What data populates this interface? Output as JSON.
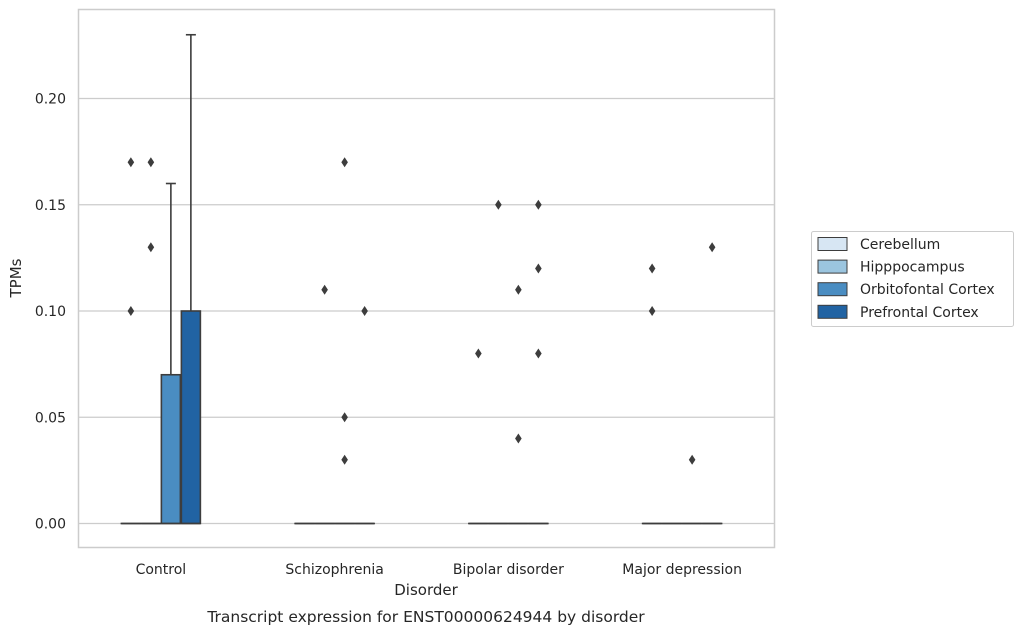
{
  "chart_data": {
    "type": "box",
    "caption": "Transcript expression for ENST00000624944 by disorder",
    "xlabel": "Disorder",
    "ylabel": "TPMs",
    "categories": [
      "Control",
      "Schizophrenia",
      "Bipolar disorder",
      "Major depression"
    ],
    "yticks": [
      "0.00",
      "0.05",
      "0.10",
      "0.15",
      "0.20"
    ],
    "ylim": [
      -0.011,
      0.242
    ],
    "grid": "horizontal",
    "legend_position": "right",
    "series": [
      {
        "name": "Cerebellum",
        "color": "#d7e6f3",
        "boxes": [
          {
            "q1": 0,
            "median": 0,
            "q3": 0,
            "whisker_low": 0,
            "whisker_high": 0,
            "outliers": [
              0.17,
              0.1
            ]
          },
          {
            "q1": 0,
            "median": 0,
            "q3": 0,
            "whisker_low": 0,
            "whisker_high": 0,
            "outliers": []
          },
          {
            "q1": 0,
            "median": 0,
            "q3": 0,
            "whisker_low": 0,
            "whisker_high": 0,
            "outliers": [
              0.08
            ]
          },
          {
            "q1": 0,
            "median": 0,
            "q3": 0,
            "whisker_low": 0,
            "whisker_high": 0,
            "outliers": [
              0.12,
              0.1
            ]
          }
        ]
      },
      {
        "name": "Hipppocampus",
        "color": "#9bc5df",
        "boxes": [
          {
            "q1": 0,
            "median": 0,
            "q3": 0,
            "whisker_low": 0,
            "whisker_high": 0,
            "outliers": [
              0.17,
              0.13
            ]
          },
          {
            "q1": 0,
            "median": 0,
            "q3": 0,
            "whisker_low": 0,
            "whisker_high": 0,
            "outliers": [
              0.11
            ]
          },
          {
            "q1": 0,
            "median": 0,
            "q3": 0,
            "whisker_low": 0,
            "whisker_high": 0,
            "outliers": [
              0.15
            ]
          },
          {
            "q1": 0,
            "median": 0,
            "q3": 0,
            "whisker_low": 0,
            "whisker_high": 0,
            "outliers": []
          }
        ]
      },
      {
        "name": "Orbitofontal Cortex",
        "color": "#4a8dc2",
        "boxes": [
          {
            "q1": 0,
            "median": 0,
            "q3": 0.07,
            "whisker_low": 0,
            "whisker_high": 0.16,
            "outliers": []
          },
          {
            "q1": 0,
            "median": 0,
            "q3": 0,
            "whisker_low": 0,
            "whisker_high": 0,
            "outliers": [
              0.17,
              0.05,
              0.03
            ]
          },
          {
            "q1": 0,
            "median": 0,
            "q3": 0,
            "whisker_low": 0,
            "whisker_high": 0,
            "outliers": [
              0.11,
              0.04
            ]
          },
          {
            "q1": 0,
            "median": 0,
            "q3": 0,
            "whisker_low": 0,
            "whisker_high": 0,
            "outliers": [
              0.03
            ]
          }
        ]
      },
      {
        "name": "Prefrontal Cortex",
        "color": "#2163a3",
        "boxes": [
          {
            "q1": 0,
            "median": 0,
            "q3": 0.1,
            "whisker_low": 0,
            "whisker_high": 0.23,
            "outliers": []
          },
          {
            "q1": 0,
            "median": 0,
            "q3": 0,
            "whisker_low": 0,
            "whisker_high": 0,
            "outliers": [
              0.1
            ]
          },
          {
            "q1": 0,
            "median": 0,
            "q3": 0,
            "whisker_low": 0,
            "whisker_high": 0,
            "outliers": [
              0.15,
              0.12,
              0.08
            ]
          },
          {
            "q1": 0,
            "median": 0,
            "q3": 0,
            "whisker_low": 0,
            "whisker_high": 0,
            "outliers": [
              0.13
            ]
          }
        ]
      }
    ]
  }
}
